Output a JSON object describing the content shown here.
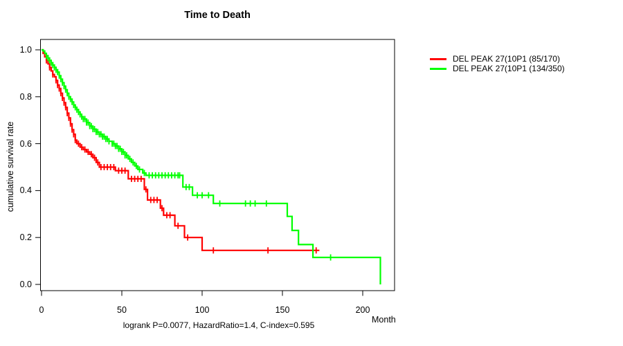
{
  "chart_data": {
    "type": "line",
    "subtype": "kaplan-meier-step-survival",
    "title": "Time to Death",
    "xlabel": "Month",
    "ylabel": "cumulative survival rate",
    "annotation": "logrank P=0.0077, HazardRatio=1.4, C-index=0.595",
    "xlim": [
      0,
      220
    ],
    "ylim": [
      0.0,
      1.0
    ],
    "x_ticks": [
      0,
      50,
      100,
      150,
      200
    ],
    "y_ticks": [
      0.0,
      0.2,
      0.4,
      0.6,
      0.8,
      1.0
    ],
    "grid": false,
    "legend_position": "right-outside",
    "axis_color": "#000000",
    "series": [
      {
        "name": "DEL PEAK 27(10P1 (85/170)",
        "events": "85/170",
        "color": "#ff0000",
        "steps": [
          [
            0,
            1.0
          ],
          [
            1,
            0.985
          ],
          [
            2,
            0.97
          ],
          [
            3,
            0.955
          ],
          [
            4,
            0.94
          ],
          [
            5,
            0.925
          ],
          [
            6,
            0.91
          ],
          [
            7,
            0.895
          ],
          [
            8,
            0.885
          ],
          [
            9,
            0.87
          ],
          [
            10,
            0.85
          ],
          [
            11,
            0.835
          ],
          [
            12,
            0.815
          ],
          [
            13,
            0.795
          ],
          [
            14,
            0.775
          ],
          [
            15,
            0.755
          ],
          [
            16,
            0.73
          ],
          [
            17,
            0.71
          ],
          [
            18,
            0.685
          ],
          [
            19,
            0.66
          ],
          [
            20,
            0.64
          ],
          [
            21,
            0.615
          ],
          [
            22,
            0.6
          ],
          [
            24,
            0.585
          ],
          [
            26,
            0.575
          ],
          [
            28,
            0.565
          ],
          [
            30,
            0.555
          ],
          [
            32,
            0.54
          ],
          [
            34,
            0.52
          ],
          [
            36,
            0.5
          ],
          [
            46,
            0.485
          ],
          [
            54,
            0.45
          ],
          [
            64,
            0.405
          ],
          [
            66,
            0.36
          ],
          [
            74,
            0.325
          ],
          [
            76,
            0.295
          ],
          [
            83,
            0.25
          ],
          [
            89,
            0.2
          ],
          [
            100,
            0.145
          ],
          [
            173,
            0.145
          ]
        ],
        "censor_months": [
          3,
          5,
          7,
          9,
          10,
          11,
          12,
          13,
          14,
          15,
          16,
          17,
          18,
          19,
          20,
          21,
          23,
          25,
          27,
          29,
          31,
          33,
          35,
          37,
          39,
          41,
          43,
          45,
          48,
          50,
          52,
          56,
          58,
          60,
          62,
          65,
          68,
          70,
          72,
          75,
          78,
          80,
          85,
          91,
          107,
          141,
          171
        ]
      },
      {
        "name": "DEL PEAK 27(10P1 (134/350)",
        "events": "134/350",
        "color": "#00ff00",
        "steps": [
          [
            0,
            1.0
          ],
          [
            1,
            0.995
          ],
          [
            2,
            0.985
          ],
          [
            3,
            0.975
          ],
          [
            4,
            0.965
          ],
          [
            5,
            0.955
          ],
          [
            6,
            0.945
          ],
          [
            7,
            0.935
          ],
          [
            8,
            0.925
          ],
          [
            9,
            0.915
          ],
          [
            10,
            0.905
          ],
          [
            11,
            0.89
          ],
          [
            12,
            0.875
          ],
          [
            13,
            0.86
          ],
          [
            14,
            0.845
          ],
          [
            15,
            0.83
          ],
          [
            16,
            0.815
          ],
          [
            17,
            0.8
          ],
          [
            18,
            0.79
          ],
          [
            19,
            0.778
          ],
          [
            20,
            0.765
          ],
          [
            21,
            0.755
          ],
          [
            22,
            0.745
          ],
          [
            23,
            0.735
          ],
          [
            24,
            0.725
          ],
          [
            25,
            0.715
          ],
          [
            26,
            0.705
          ],
          [
            28,
            0.69
          ],
          [
            30,
            0.675
          ],
          [
            32,
            0.662
          ],
          [
            34,
            0.65
          ],
          [
            36,
            0.64
          ],
          [
            38,
            0.63
          ],
          [
            40,
            0.62
          ],
          [
            42,
            0.61
          ],
          [
            44,
            0.6
          ],
          [
            46,
            0.59
          ],
          [
            48,
            0.578
          ],
          [
            50,
            0.565
          ],
          [
            52,
            0.55
          ],
          [
            54,
            0.535
          ],
          [
            56,
            0.52
          ],
          [
            58,
            0.505
          ],
          [
            60,
            0.49
          ],
          [
            63,
            0.475
          ],
          [
            65,
            0.465
          ],
          [
            88,
            0.415
          ],
          [
            94,
            0.38
          ],
          [
            107,
            0.345
          ],
          [
            153,
            0.29
          ],
          [
            156,
            0.23
          ],
          [
            160,
            0.17
          ],
          [
            169,
            0.115
          ],
          [
            211,
            0.0
          ]
        ],
        "censor_months": [
          3,
          4,
          5,
          6,
          7,
          8,
          9,
          10,
          11,
          12,
          13,
          14,
          15,
          16,
          17,
          18,
          19,
          20,
          21,
          22,
          23,
          24,
          25,
          26,
          27,
          28,
          29,
          30,
          31,
          32,
          33,
          34,
          35,
          36,
          37,
          38,
          39,
          40,
          41,
          42,
          44,
          45,
          46,
          47,
          48,
          49,
          50,
          51,
          52,
          53,
          55,
          57,
          59,
          61,
          64,
          67,
          69,
          71,
          73,
          75,
          77,
          79,
          81,
          83,
          85,
          86,
          90,
          92,
          97,
          100,
          104,
          111,
          127,
          130,
          133,
          140,
          180
        ]
      }
    ]
  }
}
